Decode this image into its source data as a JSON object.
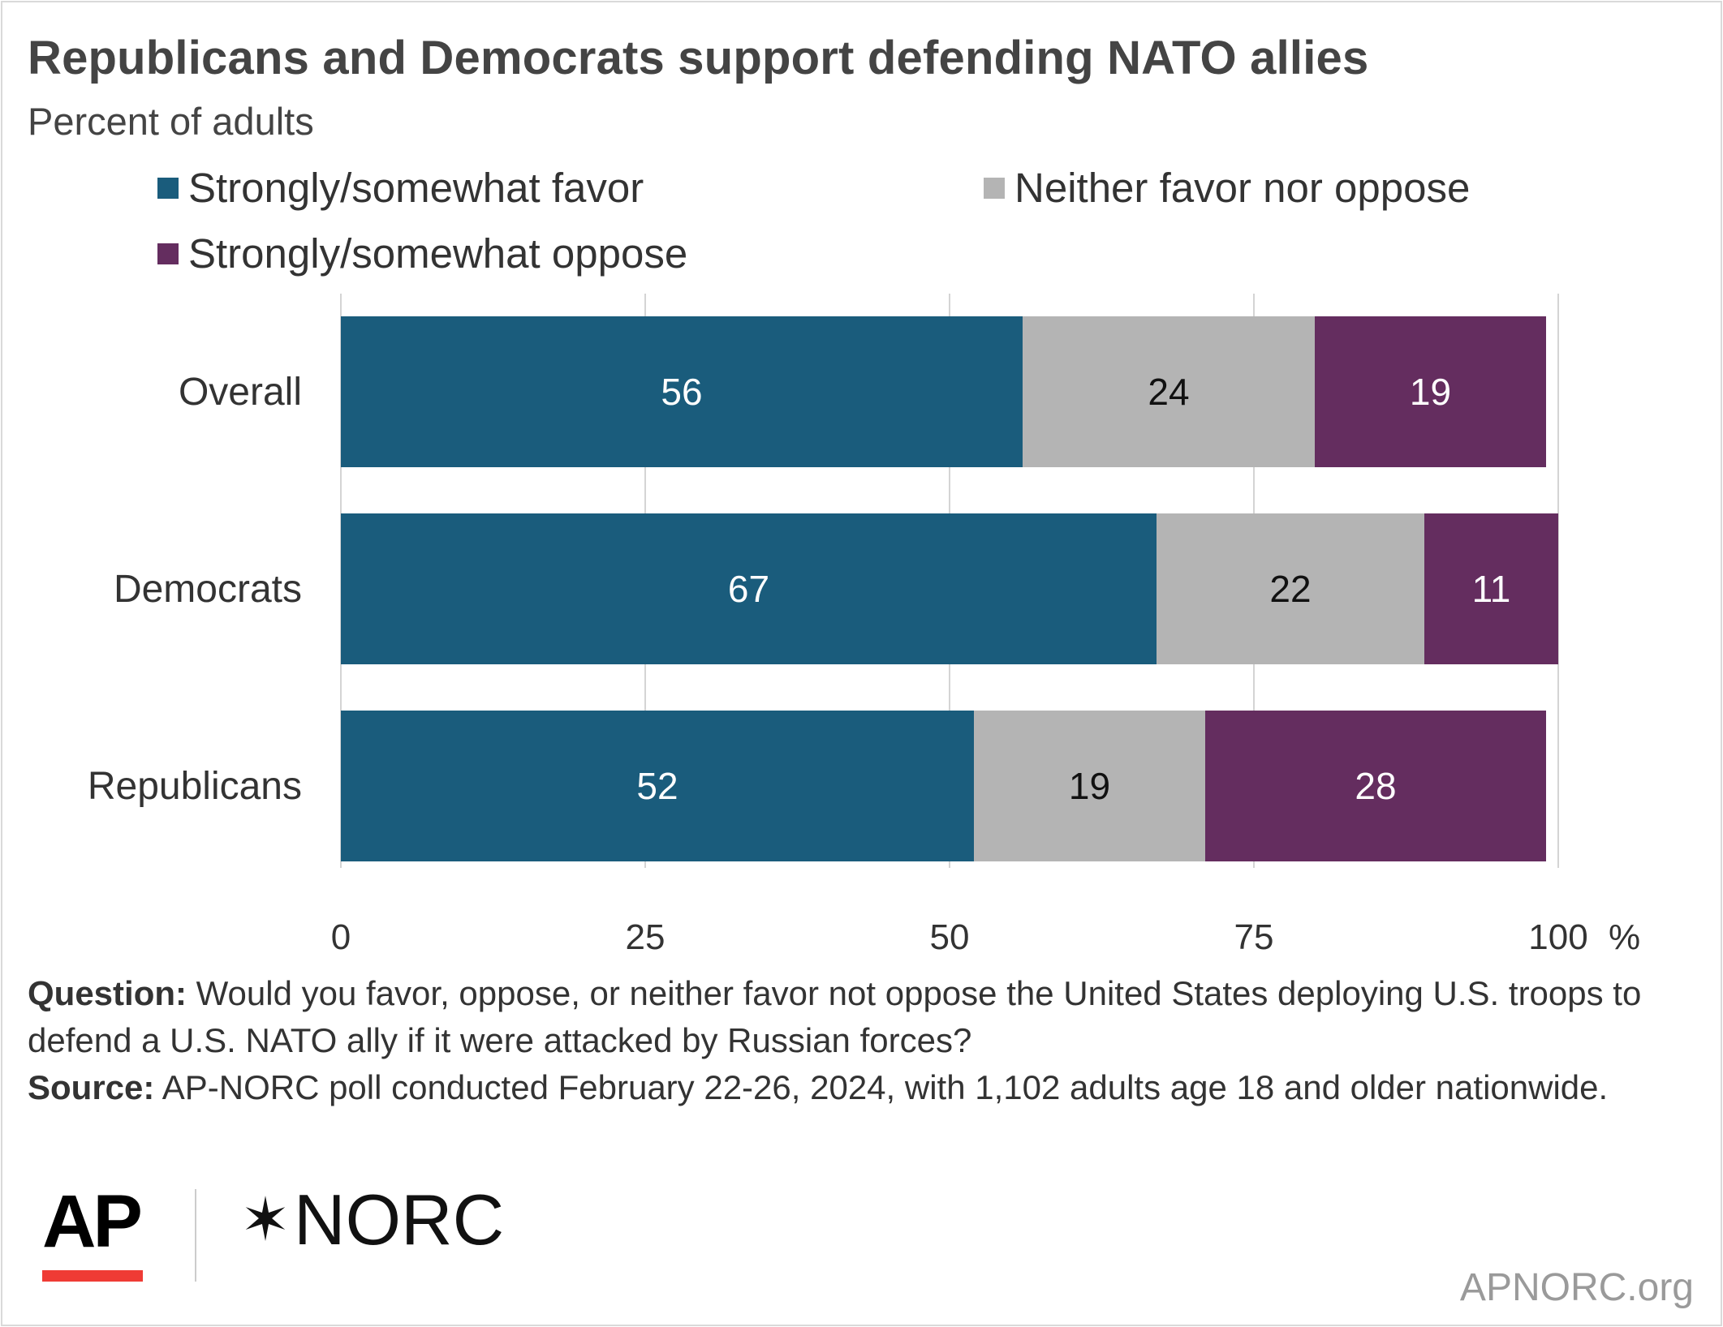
{
  "header": {
    "title": "Republicans and Democrats support defending NATO allies",
    "subtitle": "Percent of adults"
  },
  "legend": [
    {
      "label": "Strongly/somewhat favor",
      "color": "#1a5c7c"
    },
    {
      "label": "Neither favor nor oppose",
      "color": "#b4b4b4"
    },
    {
      "label": "Strongly/somewhat oppose",
      "color": "#642d5f"
    }
  ],
  "chart_data": {
    "type": "bar",
    "orientation": "horizontal",
    "stacked": true,
    "categories": [
      "Overall",
      "Democrats",
      "Republicans"
    ],
    "series": [
      {
        "name": "Strongly/somewhat favor",
        "values": [
          56,
          67,
          52
        ],
        "color": "#1a5c7c",
        "label_color": "#ffffff"
      },
      {
        "name": "Neither favor nor oppose",
        "values": [
          24,
          22,
          19
        ],
        "color": "#b4b4b4",
        "label_color": "#111111"
      },
      {
        "name": "Strongly/somewhat oppose",
        "values": [
          19,
          11,
          28
        ],
        "color": "#642d5f",
        "label_color": "#ffffff"
      }
    ],
    "xlim": [
      0,
      100
    ],
    "xticks": [
      0,
      25,
      50,
      75,
      100
    ],
    "xtick_labels": [
      "0",
      "25",
      "50",
      "75",
      "100"
    ],
    "x_unit": "%",
    "grid": true,
    "legend_position": "top"
  },
  "notes": {
    "question_label": "Question:",
    "question_text": " Would you favor, oppose, or neither favor not oppose the United States deploying U.S. troops to defend a U.S. NATO ally if it were attacked by Russian forces?",
    "source_label": "Source:",
    "source_text": " AP-NORC poll conducted February 22-26, 2024, with 1,102 adults age 18 and older nationwide."
  },
  "branding": {
    "ap_logo": "AP",
    "norc_logo": "NORC",
    "norc_icon": "star-icon",
    "site": "APNORC.org"
  }
}
